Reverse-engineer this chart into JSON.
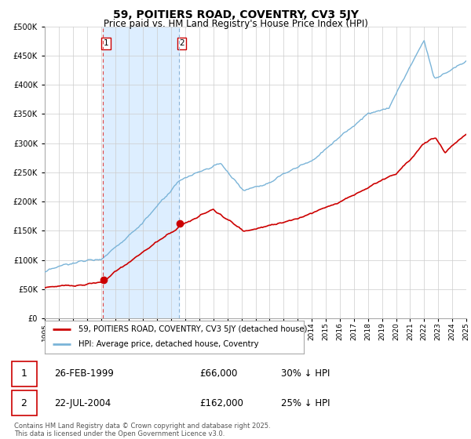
{
  "title": "59, POITIERS ROAD, COVENTRY, CV3 5JY",
  "subtitle": "Price paid vs. HM Land Registry's House Price Index (HPI)",
  "legend_line1": "59, POITIERS ROAD, COVENTRY, CV3 5JY (detached house)",
  "legend_line2": "HPI: Average price, detached house, Coventry",
  "transaction1_date": "26-FEB-1999",
  "transaction1_price": "£66,000",
  "transaction1_hpi": "30% ↓ HPI",
  "transaction2_date": "22-JUL-2004",
  "transaction2_price": "£162,000",
  "transaction2_hpi": "25% ↓ HPI",
  "footer": "Contains HM Land Registry data © Crown copyright and database right 2025.\nThis data is licensed under the Open Government Licence v3.0.",
  "hpi_color": "#7ab4d8",
  "price_color": "#cc0000",
  "marker_color": "#cc0000",
  "vline1_color": "#dd4444",
  "vline2_color": "#8ab4d8",
  "shade_color": "#ddeeff",
  "grid_color": "#cccccc",
  "background_color": "#ffffff",
  "title_fontsize": 10,
  "subtitle_fontsize": 8.5,
  "axis_fontsize": 7,
  "ylim": [
    0,
    500000
  ],
  "yticks": [
    0,
    50000,
    100000,
    150000,
    200000,
    250000,
    300000,
    350000,
    400000,
    450000,
    500000
  ],
  "year_start": 1995,
  "year_end": 2025,
  "transaction1_year": 1999.15,
  "transaction1_price_val": 66000,
  "transaction2_year": 2004.55,
  "transaction2_price_val": 162000
}
